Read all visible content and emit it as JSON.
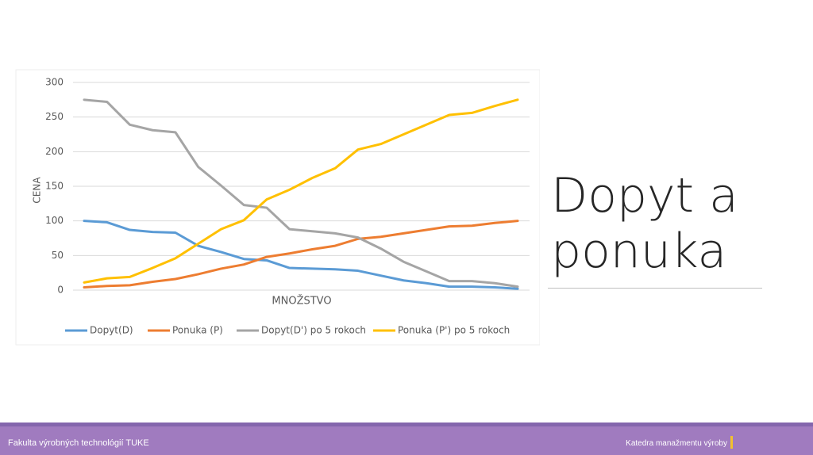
{
  "chart_data": {
    "type": "line",
    "categories": [
      null,
      null,
      null,
      null,
      null,
      null,
      null,
      null,
      null,
      null,
      null,
      null,
      null,
      null,
      null,
      null,
      null,
      null,
      null,
      null
    ],
    "xlabel": "MNOŽSTVO",
    "ylabel": "CENA",
    "ylim": [
      0,
      300
    ],
    "yticks": [
      0,
      50,
      100,
      150,
      200,
      250,
      300
    ],
    "grid": true,
    "legend": "bottom",
    "series": [
      {
        "name": "Dopyt(D)",
        "color": "#5b9bd5",
        "values": [
          100,
          98,
          87,
          84,
          83,
          64,
          55,
          45,
          43,
          32,
          31,
          30,
          28,
          21,
          14,
          10,
          5,
          5,
          4,
          2
        ]
      },
      {
        "name": "Ponuka (P)",
        "color": "#ed7d31",
        "values": [
          4,
          6,
          7,
          12,
          16,
          23,
          31,
          37,
          48,
          53,
          59,
          64,
          74,
          77,
          82,
          87,
          92,
          93,
          97,
          100
        ]
      },
      {
        "name": "Dopyt(D') po 5 rokoch",
        "color": "#a5a5a5",
        "values": [
          275,
          272,
          239,
          231,
          228,
          178,
          151,
          123,
          119,
          88,
          85,
          82,
          76,
          60,
          41,
          27,
          13,
          13,
          10,
          5
        ]
      },
      {
        "name": "Ponuka (P') po 5 rokoch",
        "color": "#ffc000",
        "values": [
          11,
          17,
          19,
          32,
          46,
          67,
          88,
          101,
          131,
          145,
          162,
          176,
          203,
          211,
          225,
          239,
          253,
          256,
          266,
          275
        ]
      }
    ]
  },
  "slide": {
    "title": "Dopyt a ponuka",
    "footer_left": "Fakulta výrobných technológií TUKE",
    "footer_right": "Katedra manažmentu výroby"
  }
}
